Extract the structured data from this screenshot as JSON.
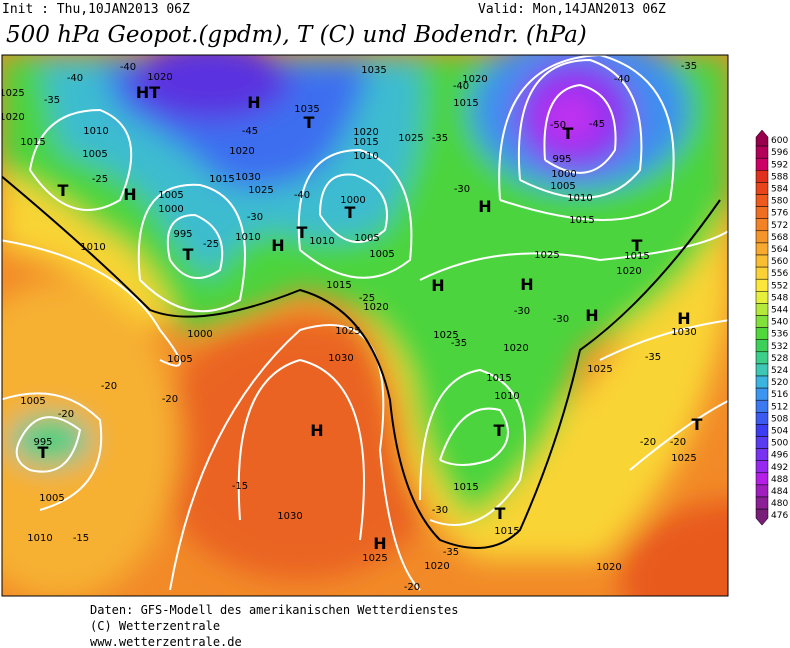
{
  "header": {
    "init": "Init : Thu,10JAN2013 06Z",
    "valid": "Valid: Mon,14JAN2013 06Z",
    "title": "500 hPa Geopot.(gpdm), T (C) und Bodendr. (hPa)"
  },
  "colorbar": {
    "levels": [
      600,
      596,
      592,
      588,
      584,
      580,
      576,
      572,
      568,
      564,
      560,
      556,
      552,
      548,
      544,
      540,
      536,
      532,
      528,
      524,
      520,
      516,
      512,
      508,
      504,
      500,
      496,
      492,
      488,
      484,
      480,
      476
    ],
    "colors": [
      "#99004c",
      "#b3005a",
      "#cc0066",
      "#e0301e",
      "#e8461a",
      "#ee5a1e",
      "#f06e22",
      "#f38226",
      "#f5962a",
      "#f7aa2e",
      "#f9be32",
      "#fbd236",
      "#fde63a",
      "#e6f03a",
      "#b4e83a",
      "#82e03a",
      "#50d83a",
      "#3cd05a",
      "#3ccf8a",
      "#3cc8b4",
      "#3cb4e0",
      "#3c96f0",
      "#3c78f0",
      "#3c5af0",
      "#3c3cf0",
      "#5a3cf0",
      "#7832f0",
      "#9628f0",
      "#b41ee6",
      "#a01ebe",
      "#8c1e96",
      "#781e78"
    ]
  },
  "map_labels": [
    "-40",
    "-40",
    "1020",
    "HT",
    "H",
    "1035",
    "1035",
    "T",
    "-45",
    "1020",
    "1020",
    "1015",
    "1010",
    "1025",
    "-35",
    "1030",
    "1015",
    "1025",
    "-40",
    "-35",
    "1010",
    "1005",
    "1015",
    "T",
    "H",
    "-25",
    "1005",
    "1000",
    "T",
    "1000",
    "-30",
    "1010",
    "995",
    "-25",
    "T",
    "H",
    "T",
    "1010",
    "1005",
    "1005",
    "1015",
    "-25",
    "1020",
    "1000",
    "1005",
    "1025",
    "1030",
    "-30",
    "H",
    "1020",
    "1015",
    "-40",
    "-50",
    "T",
    "-45",
    "-40",
    "995",
    "1000",
    "1005",
    "1010",
    "1015",
    "1025",
    "H",
    "H",
    "-30",
    "-30",
    "H",
    "T",
    "1015",
    "1020",
    "H",
    "1030",
    "-35",
    "1025",
    "T",
    "-20",
    "1025",
    "1025",
    "-35",
    "1020",
    "1015",
    "1010",
    "T",
    "H",
    "1005",
    "-20",
    "995",
    "T",
    "-20",
    "-20",
    "1005",
    "1010",
    "-15",
    "-15",
    "1030",
    "1015",
    "-30",
    "T",
    "1015",
    "H",
    "1025",
    "-35",
    "1020",
    "-20",
    "1020",
    "-20",
    "-35",
    "1025",
    "1020",
    "1010"
  ],
  "footer": [
    "Daten: GFS-Modell des amerikanischen Wetterdienstes",
    "(C) Wetterzentrale",
    "www.wetterzentrale.de"
  ]
}
